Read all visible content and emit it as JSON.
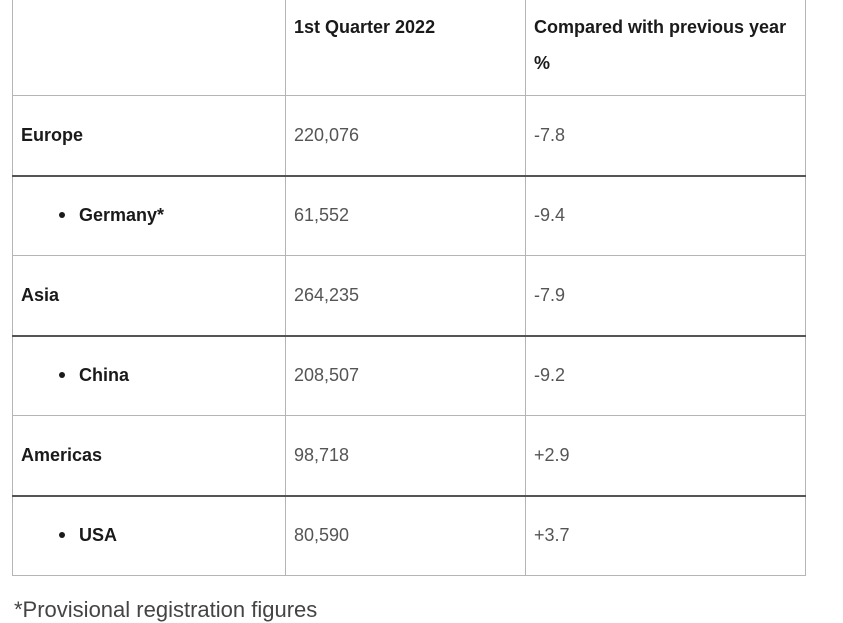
{
  "table": {
    "header": {
      "col1": "",
      "col2": "1st Quarter 2022",
      "col3_line1": "Compared with previous year",
      "col3_line2": "%"
    },
    "rows": [
      {
        "label": "Europe",
        "value": "220,076",
        "change": "-7.8",
        "sub": false
      },
      {
        "label": "Germany*",
        "value": "61,552",
        "change": "-9.4",
        "sub": true
      },
      {
        "label": "Asia",
        "value": "264,235",
        "change": "-7.9",
        "sub": false
      },
      {
        "label": "China",
        "value": "208,507",
        "change": "-9.2",
        "sub": true
      },
      {
        "label": "Americas",
        "value": "98,718",
        "change": "+2.9",
        "sub": false
      },
      {
        "label": "USA",
        "value": "80,590",
        "change": "+3.7",
        "sub": true
      }
    ]
  },
  "footnote": "*Provisional registration figures"
}
